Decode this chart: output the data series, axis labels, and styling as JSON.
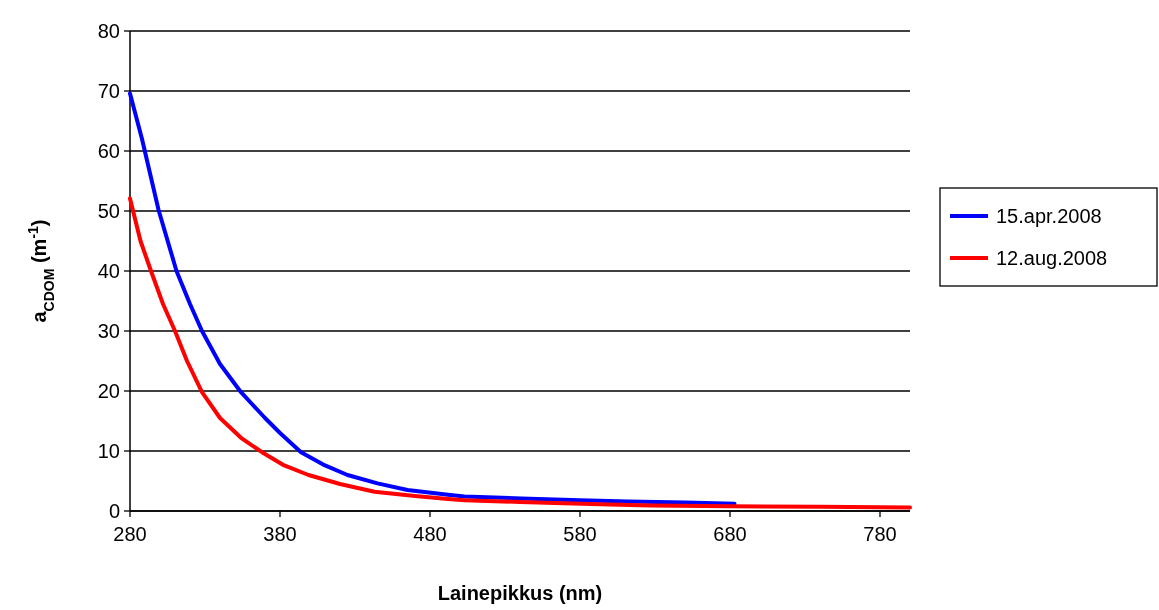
{
  "chart_data": {
    "type": "line",
    "xlabel": "Lainepikkus (nm)",
    "ylabel": "a$_{CDOM}$ (m$^{-1}$)",
    "xlim": [
      280,
      800
    ],
    "xticks": [
      280,
      380,
      480,
      580,
      680,
      780
    ],
    "ylim": [
      0,
      80
    ],
    "yticks": [
      0,
      10,
      20,
      30,
      40,
      50,
      60,
      70,
      80
    ],
    "grid": "y",
    "legend": "right",
    "marker": "none",
    "line_style": "solid",
    "series": [
      {
        "name": "15.apr.2008",
        "color": "#0000ff",
        "x": [
          280,
          288,
          299,
          311,
          320,
          328,
          340,
          354,
          370,
          380,
          394,
          410,
          425,
          445,
          465,
          492,
          503,
          541,
          580,
          612,
          650,
          683
        ],
        "values": [
          69.6,
          62,
          50.2,
          40,
          34.5,
          30,
          24.5,
          19.8,
          15.5,
          13,
          9.8,
          7.6,
          6,
          4.6,
          3.5,
          2.7,
          2.4,
          2.1,
          1.8,
          1.6,
          1.4,
          1.2
        ]
      },
      {
        "name": "12.aug.2008",
        "color": "#ff0000",
        "x": [
          280,
          287,
          294,
          302,
          310,
          318,
          328,
          340,
          354,
          368,
          382,
          399,
          420,
          443,
          470,
          492,
          503,
          540,
          569,
          600,
          627,
          680,
          740,
          800
        ],
        "values": [
          52.1,
          45,
          40,
          34.5,
          30,
          25,
          19.8,
          15.5,
          12.2,
          9.8,
          7.7,
          6,
          4.5,
          3.2,
          2.5,
          2,
          1.8,
          1.5,
          1.3,
          1.1,
          0.9,
          0.8,
          0.7,
          0.6
        ]
      }
    ]
  }
}
